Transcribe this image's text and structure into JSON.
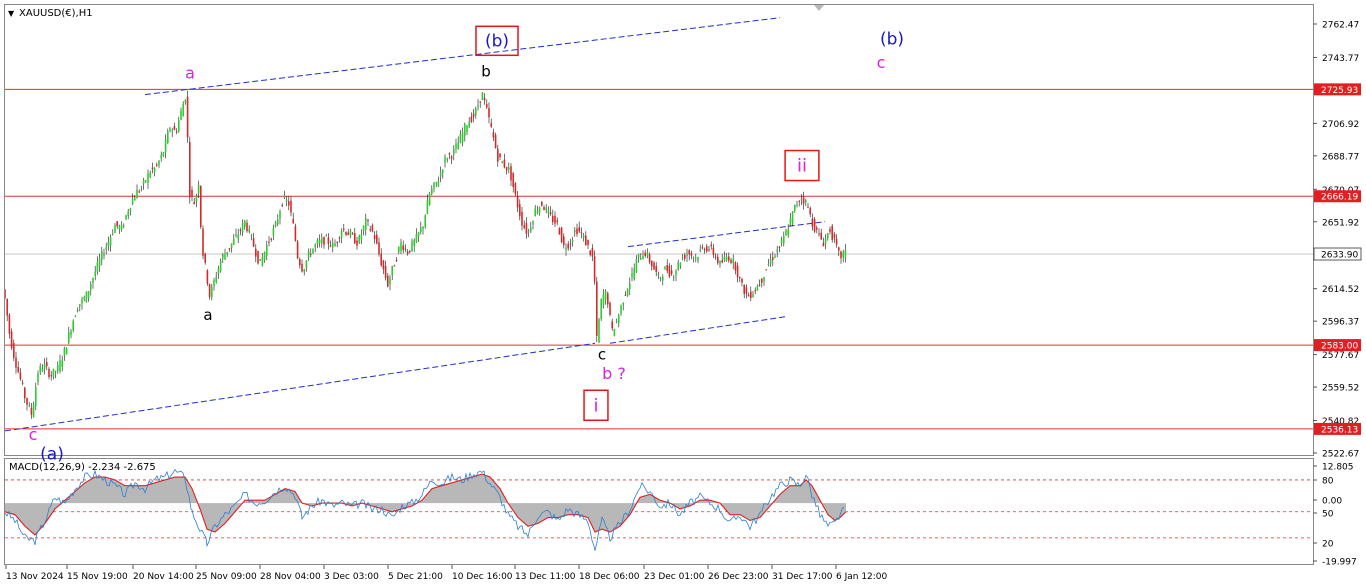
{
  "window": {
    "symbol_label": "XAUUSD(€),H1",
    "indicator_label": "MACD(12,26,9) -2.234 -2.675"
  },
  "colors": {
    "background": "#ffffff",
    "bull": "#2ecc2e",
    "bear": "#d62828",
    "wick": "#111111",
    "hline": "#e03030",
    "channel": "#1f2fd0",
    "current_price_line": "#c8c8c8",
    "label_black": "#000000",
    "label_magenta": "#e020e0",
    "label_blue": "#1818c8",
    "box_red": "#e01818",
    "macd_signal": "#e02020",
    "macd_main": "#2a7fd6",
    "macd_hist": "#b8b8b8",
    "price_tag_bg": "#e02020",
    "current_tag_bg": "#ffffff"
  },
  "chart_data": {
    "type": "candlestick",
    "price_axis": {
      "ticks": [
        "2762.47",
        "2743.77",
        "2706.92",
        "2688.77",
        "2670.07",
        "2651.92",
        "2614.52",
        "2596.37",
        "2577.67",
        "2559.52",
        "2540.82",
        "2522.67"
      ],
      "range": [
        2521,
        2768
      ]
    },
    "time_axis": {
      "labels": [
        "13 Nov 2024",
        "15 Nov 19:00",
        "20 Nov 14:00",
        "25 Nov 09:00",
        "28 Nov 04:00",
        "3 Dec 03:00",
        "5 Dec 21:00",
        "10 Dec 16:00",
        "13 Dec 11:00",
        "18 Dec 06:00",
        "23 Dec 01:00",
        "26 Dec 23:00",
        "31 Dec 17:00",
        "6 Jan 12:00"
      ]
    },
    "price_path": [
      [
        0,
        2614
      ],
      [
        3,
        2618
      ],
      [
        7,
        2610
      ],
      [
        12,
        2588
      ],
      [
        17,
        2575
      ],
      [
        22,
        2565
      ],
      [
        28,
        2552
      ],
      [
        34,
        2544
      ],
      [
        40,
        2568
      ],
      [
        46,
        2572
      ],
      [
        53,
        2566
      ],
      [
        60,
        2570
      ],
      [
        67,
        2580
      ],
      [
        74,
        2595
      ],
      [
        80,
        2605
      ],
      [
        88,
        2610
      ],
      [
        96,
        2622
      ],
      [
        103,
        2632
      ],
      [
        110,
        2640
      ],
      [
        117,
        2650
      ],
      [
        124,
        2648
      ],
      [
        131,
        2660
      ],
      [
        138,
        2668
      ],
      [
        145,
        2672
      ],
      [
        152,
        2680
      ],
      [
        158,
        2682
      ],
      [
        165,
        2690
      ],
      [
        172,
        2705
      ],
      [
        178,
        2702
      ],
      [
        184,
        2715
      ],
      [
        188,
        2723
      ],
      [
        192,
        2668
      ],
      [
        197,
        2662
      ],
      [
        201,
        2675
      ],
      [
        204,
        2638
      ],
      [
        208,
        2625
      ],
      [
        212,
        2610
      ],
      [
        217,
        2620
      ],
      [
        224,
        2632
      ],
      [
        232,
        2638
      ],
      [
        240,
        2645
      ],
      [
        247,
        2652
      ],
      [
        255,
        2640
      ],
      [
        262,
        2628
      ],
      [
        270,
        2640
      ],
      [
        278,
        2650
      ],
      [
        285,
        2665
      ],
      [
        291,
        2662
      ],
      [
        296,
        2648
      ],
      [
        300,
        2632
      ],
      [
        305,
        2625
      ],
      [
        312,
        2635
      ],
      [
        320,
        2640
      ],
      [
        328,
        2642
      ],
      [
        336,
        2638
      ],
      [
        344,
        2648
      ],
      [
        352,
        2645
      ],
      [
        360,
        2640
      ],
      [
        368,
        2652
      ],
      [
        376,
        2645
      ],
      [
        383,
        2630
      ],
      [
        390,
        2617
      ],
      [
        396,
        2628
      ],
      [
        403,
        2640
      ],
      [
        410,
        2635
      ],
      [
        418,
        2642
      ],
      [
        425,
        2650
      ],
      [
        432,
        2668
      ],
      [
        440,
        2675
      ],
      [
        448,
        2688
      ],
      [
        455,
        2690
      ],
      [
        462,
        2698
      ],
      [
        470,
        2708
      ],
      [
        477,
        2712
      ],
      [
        484,
        2724
      ],
      [
        490,
        2712
      ],
      [
        495,
        2700
      ],
      [
        500,
        2688
      ],
      [
        506,
        2684
      ],
      [
        512,
        2680
      ],
      [
        518,
        2665
      ],
      [
        524,
        2652
      ],
      [
        530,
        2645
      ],
      [
        537,
        2658
      ],
      [
        544,
        2662
      ],
      [
        552,
        2655
      ],
      [
        560,
        2650
      ],
      [
        566,
        2638
      ],
      [
        572,
        2640
      ],
      [
        578,
        2648
      ],
      [
        584,
        2645
      ],
      [
        590,
        2638
      ],
      [
        596,
        2630
      ],
      [
        599,
        2586
      ],
      [
        604,
        2610
      ],
      [
        609,
        2612
      ],
      [
        614,
        2590
      ],
      [
        620,
        2598
      ],
      [
        627,
        2612
      ],
      [
        633,
        2620
      ],
      [
        640,
        2632
      ],
      [
        647,
        2635
      ],
      [
        654,
        2628
      ],
      [
        661,
        2620
      ],
      [
        668,
        2626
      ],
      [
        675,
        2622
      ],
      [
        682,
        2630
      ],
      [
        690,
        2635
      ],
      [
        698,
        2632
      ],
      [
        706,
        2638
      ],
      [
        714,
        2636
      ],
      [
        722,
        2628
      ],
      [
        730,
        2633
      ],
      [
        737,
        2628
      ],
      [
        744,
        2616
      ],
      [
        750,
        2610
      ],
      [
        757,
        2614
      ],
      [
        764,
        2620
      ],
      [
        770,
        2628
      ],
      [
        777,
        2634
      ],
      [
        784,
        2640
      ],
      [
        791,
        2650
      ],
      [
        797,
        2660
      ],
      [
        803,
        2666
      ],
      [
        809,
        2662
      ],
      [
        814,
        2652
      ],
      [
        820,
        2645
      ],
      [
        826,
        2640
      ],
      [
        832,
        2648
      ],
      [
        837,
        2640
      ],
      [
        842,
        2632
      ],
      [
        846,
        2634
      ]
    ],
    "horizontal_levels": [
      {
        "price": 2725.93,
        "label": "2725.93"
      },
      {
        "price": 2666.19,
        "label": "2666.19"
      },
      {
        "price": 2583.0,
        "label": "2583.00"
      },
      {
        "price": 2536.13,
        "label": "2536.13"
      }
    ],
    "current_price": {
      "price": 2633.9,
      "label": "2633.90"
    },
    "channel_lines": [
      {
        "from": [
          145,
          2723
        ],
        "to": [
          780,
          2766
        ]
      },
      {
        "from": [
          5,
          2535
        ],
        "to": [
          595,
          2584
        ]
      },
      {
        "from": [
          628,
          2638
        ],
        "to": [
          825,
          2652
        ]
      },
      {
        "from": [
          610,
          2584
        ],
        "to": [
          787,
          2599
        ]
      }
    ],
    "wave_labels": [
      {
        "text": "a",
        "x": 190,
        "price": 2732,
        "color": "magenta",
        "size": 16
      },
      {
        "text": "a",
        "x": 208,
        "price": 2597,
        "color": "black",
        "size": 15
      },
      {
        "text": "b",
        "x": 486,
        "price": 2733,
        "color": "black",
        "size": 15
      },
      {
        "text": "(b)",
        "x": 497,
        "price": 2750,
        "color": "blue",
        "size": 17,
        "boxed": true
      },
      {
        "text": "(b)",
        "x": 892,
        "price": 2751,
        "color": "blue",
        "size": 17
      },
      {
        "text": "c",
        "x": 881,
        "price": 2738,
        "color": "magenta",
        "size": 16
      },
      {
        "text": "ii",
        "x": 802,
        "price": 2680,
        "color": "magenta",
        "size": 18,
        "boxed": true
      },
      {
        "text": "c",
        "x": 602,
        "price": 2575,
        "color": "black",
        "size": 15
      },
      {
        "text": "b ?",
        "x": 614,
        "price": 2564,
        "color": "magenta",
        "size": 16
      },
      {
        "text": "i",
        "x": 596,
        "price": 2546,
        "color": "magenta",
        "size": 18,
        "boxed": true
      },
      {
        "text": "c",
        "x": 33,
        "price": 2530,
        "color": "magenta",
        "size": 16
      },
      {
        "text": "(a)",
        "x": 52,
        "price": 2519,
        "color": "blue",
        "size": 17
      }
    ],
    "macd": {
      "axis_ticks": [
        "12.805",
        "80",
        "0.00",
        "50",
        "20",
        "-19.997"
      ],
      "range": [
        -20,
        13
      ],
      "levels": [
        8,
        -3,
        -12
      ],
      "main": [
        [
          5,
          -3
        ],
        [
          15,
          -6
        ],
        [
          25,
          -12
        ],
        [
          35,
          -13
        ],
        [
          45,
          -6
        ],
        [
          55,
          2
        ],
        [
          65,
          0
        ],
        [
          75,
          5
        ],
        [
          85,
          9
        ],
        [
          95,
          10
        ],
        [
          105,
          8
        ],
        [
          115,
          6
        ],
        [
          125,
          3
        ],
        [
          135,
          7
        ],
        [
          145,
          5
        ],
        [
          155,
          8
        ],
        [
          165,
          9
        ],
        [
          175,
          11
        ],
        [
          185,
          9
        ],
        [
          192,
          -3
        ],
        [
          200,
          -9
        ],
        [
          207,
          -14
        ],
        [
          215,
          -8
        ],
        [
          225,
          -4
        ],
        [
          235,
          -1
        ],
        [
          245,
          3
        ],
        [
          255,
          0
        ],
        [
          265,
          1
        ],
        [
          275,
          4
        ],
        [
          285,
          6
        ],
        [
          295,
          3
        ],
        [
          302,
          -5
        ],
        [
          312,
          -1
        ],
        [
          322,
          1
        ],
        [
          332,
          -1
        ],
        [
          342,
          0
        ],
        [
          352,
          -1
        ],
        [
          362,
          0
        ],
        [
          372,
          -2
        ],
        [
          382,
          -2
        ],
        [
          392,
          -5
        ],
        [
          402,
          -1
        ],
        [
          412,
          0
        ],
        [
          422,
          3
        ],
        [
          432,
          8
        ],
        [
          442,
          7
        ],
        [
          452,
          9
        ],
        [
          462,
          8
        ],
        [
          472,
          10
        ],
        [
          482,
          11
        ],
        [
          490,
          7
        ],
        [
          500,
          2
        ],
        [
          508,
          -4
        ],
        [
          518,
          -8
        ],
        [
          528,
          -11
        ],
        [
          538,
          -4
        ],
        [
          548,
          -3
        ],
        [
          558,
          -6
        ],
        [
          568,
          -2
        ],
        [
          578,
          -4
        ],
        [
          588,
          -6
        ],
        [
          595,
          -16
        ],
        [
          602,
          -6
        ],
        [
          610,
          -12
        ],
        [
          620,
          -7
        ],
        [
          630,
          -2
        ],
        [
          640,
          6
        ],
        [
          650,
          4
        ],
        [
          660,
          -1
        ],
        [
          670,
          0
        ],
        [
          680,
          -4
        ],
        [
          690,
          0
        ],
        [
          700,
          2
        ],
        [
          710,
          0
        ],
        [
          720,
          -2
        ],
        [
          730,
          -7
        ],
        [
          740,
          -4
        ],
        [
          750,
          -8
        ],
        [
          760,
          -4
        ],
        [
          770,
          2
        ],
        [
          780,
          6
        ],
        [
          790,
          8
        ],
        [
          800,
          6
        ],
        [
          806,
          10
        ],
        [
          812,
          3
        ],
        [
          820,
          -4
        ],
        [
          828,
          -8
        ],
        [
          835,
          -7
        ],
        [
          840,
          -4
        ],
        [
          846,
          -2
        ]
      ],
      "signal": [
        [
          5,
          -3
        ],
        [
          15,
          -4
        ],
        [
          25,
          -8
        ],
        [
          35,
          -11
        ],
        [
          45,
          -7
        ],
        [
          55,
          -2
        ],
        [
          65,
          1
        ],
        [
          75,
          4
        ],
        [
          85,
          7
        ],
        [
          95,
          9
        ],
        [
          105,
          9
        ],
        [
          115,
          8
        ],
        [
          125,
          6
        ],
        [
          135,
          6
        ],
        [
          145,
          6
        ],
        [
          155,
          7
        ],
        [
          165,
          8
        ],
        [
          175,
          9
        ],
        [
          185,
          9
        ],
        [
          192,
          5
        ],
        [
          200,
          -2
        ],
        [
          207,
          -9
        ],
        [
          215,
          -10
        ],
        [
          225,
          -7
        ],
        [
          235,
          -3
        ],
        [
          245,
          1
        ],
        [
          255,
          1
        ],
        [
          265,
          1
        ],
        [
          275,
          3
        ],
        [
          285,
          5
        ],
        [
          295,
          4
        ],
        [
          302,
          0
        ],
        [
          312,
          -1
        ],
        [
          322,
          0
        ],
        [
          332,
          0
        ],
        [
          342,
          0
        ],
        [
          352,
          -1
        ],
        [
          362,
          0
        ],
        [
          372,
          -1
        ],
        [
          382,
          -2
        ],
        [
          392,
          -3
        ],
        [
          402,
          -2
        ],
        [
          412,
          -1
        ],
        [
          422,
          1
        ],
        [
          432,
          5
        ],
        [
          442,
          6
        ],
        [
          452,
          7
        ],
        [
          462,
          8
        ],
        [
          472,
          9
        ],
        [
          482,
          10
        ],
        [
          490,
          9
        ],
        [
          500,
          5
        ],
        [
          508,
          0
        ],
        [
          518,
          -5
        ],
        [
          528,
          -8
        ],
        [
          538,
          -7
        ],
        [
          548,
          -5
        ],
        [
          558,
          -5
        ],
        [
          568,
          -4
        ],
        [
          578,
          -4
        ],
        [
          588,
          -5
        ],
        [
          595,
          -10
        ],
        [
          602,
          -9
        ],
        [
          610,
          -10
        ],
        [
          620,
          -8
        ],
        [
          630,
          -4
        ],
        [
          640,
          2
        ],
        [
          650,
          3
        ],
        [
          660,
          1
        ],
        [
          670,
          0
        ],
        [
          680,
          -2
        ],
        [
          690,
          -1
        ],
        [
          700,
          1
        ],
        [
          710,
          1
        ],
        [
          720,
          0
        ],
        [
          730,
          -4
        ],
        [
          740,
          -4
        ],
        [
          750,
          -6
        ],
        [
          760,
          -5
        ],
        [
          770,
          -1
        ],
        [
          780,
          3
        ],
        [
          790,
          6
        ],
        [
          800,
          6
        ],
        [
          806,
          8
        ],
        [
          812,
          6
        ],
        [
          820,
          1
        ],
        [
          828,
          -4
        ],
        [
          835,
          -6
        ],
        [
          840,
          -5
        ],
        [
          846,
          -3
        ]
      ]
    }
  }
}
